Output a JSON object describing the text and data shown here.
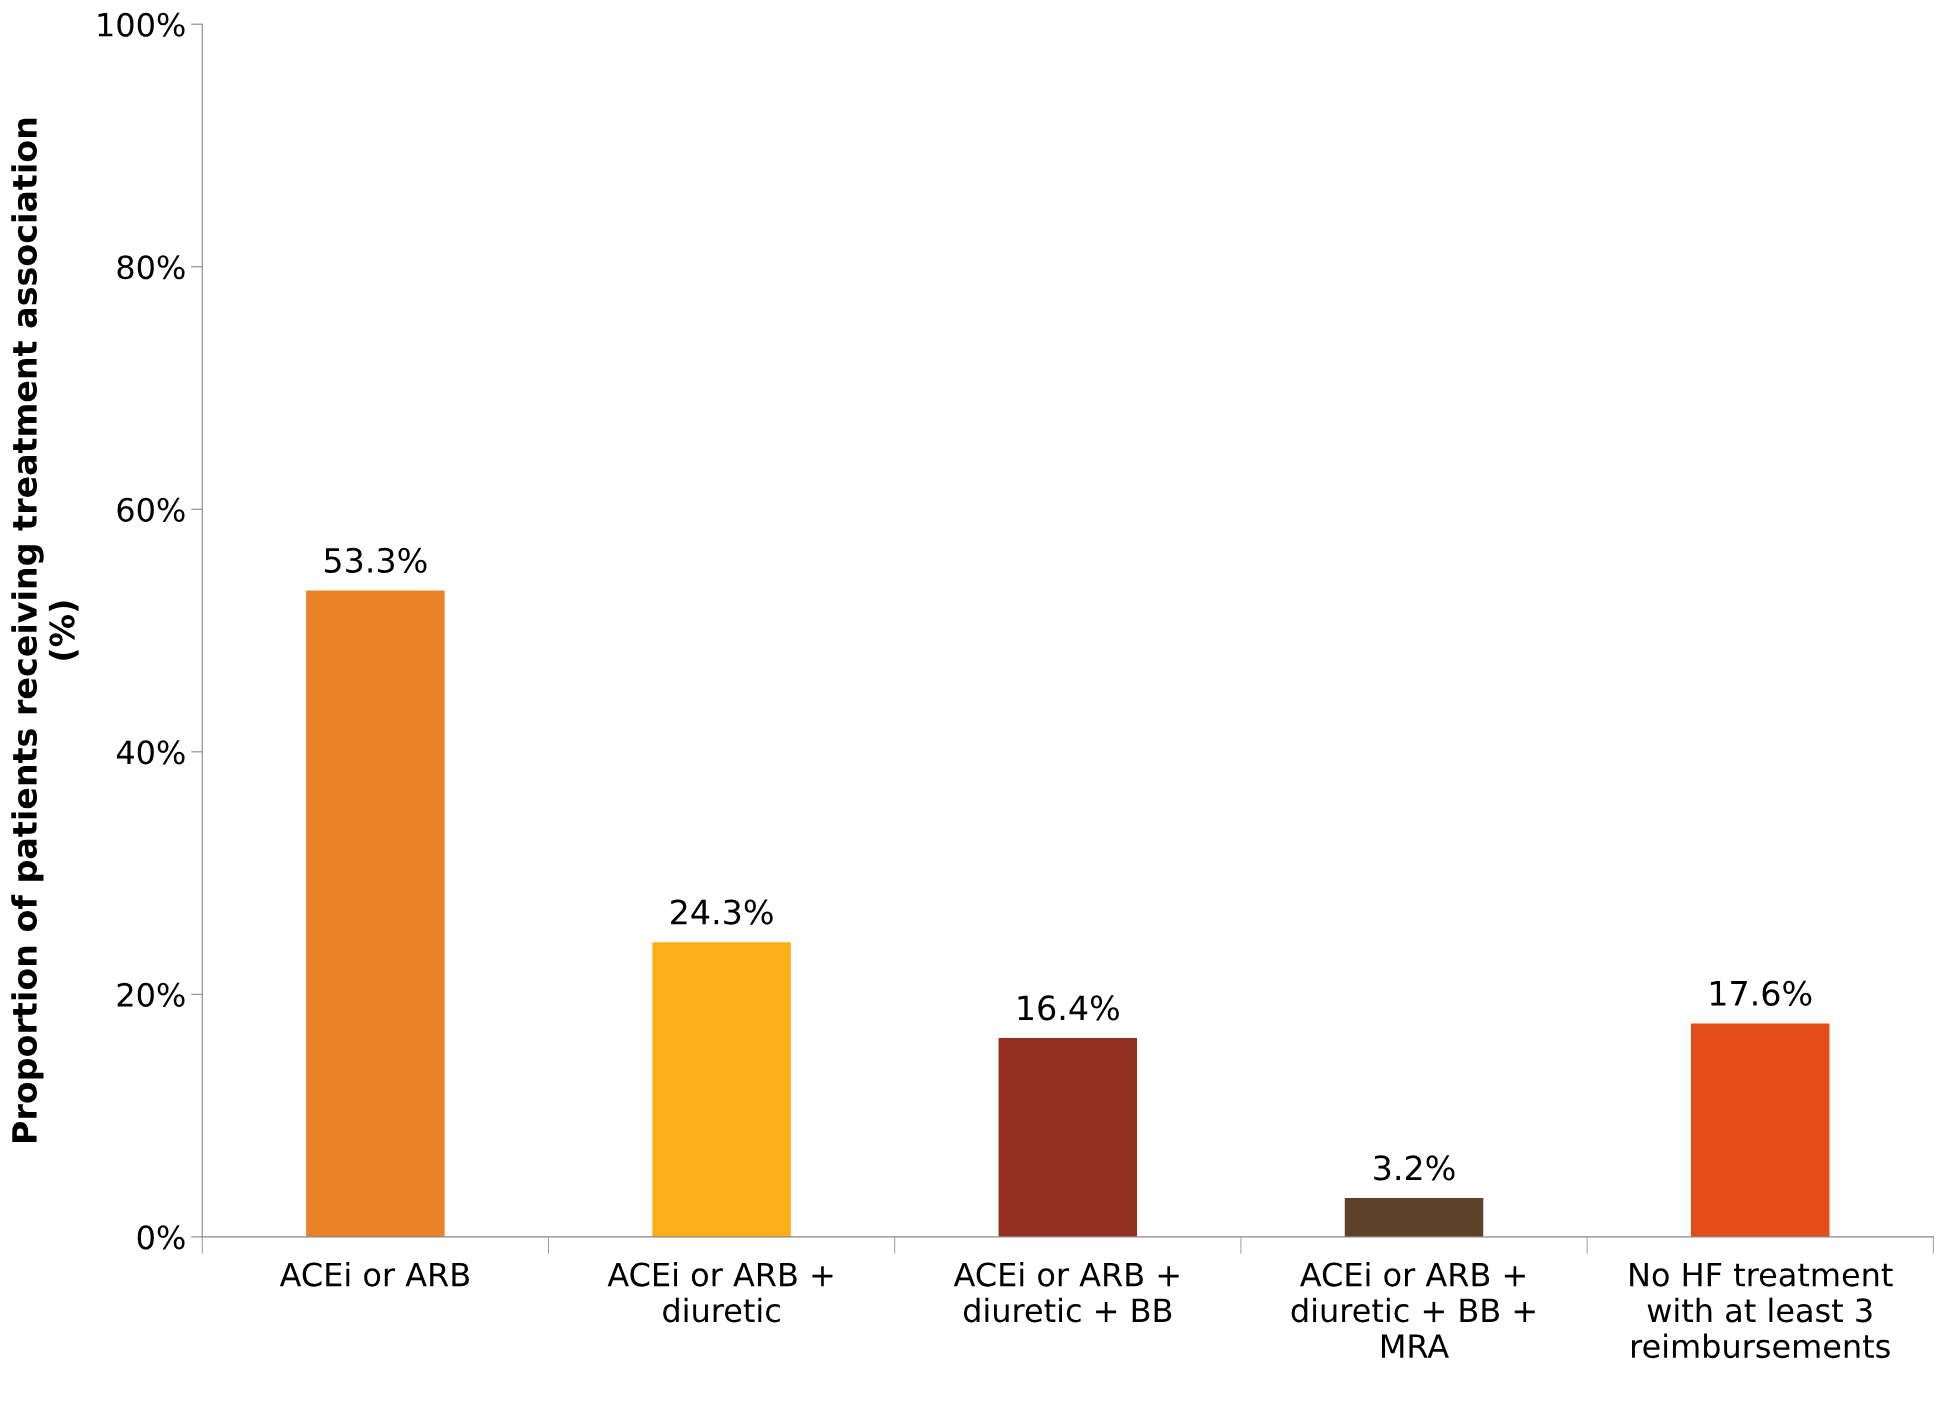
{
  "chart_data": {
    "type": "bar",
    "ylabel": "Proportion of patients receiving treatment association\n(%)",
    "categories": [
      "ACEi or ARB",
      "ACEi or ARB +\ndiuretic",
      "ACEi or ARB +\ndiuretic + BB",
      "ACEi or ARB +\ndiuretic + BB +\nMRA",
      "No HF treatment\nwith at least 3\nreimbursements"
    ],
    "values": [
      53.3,
      24.3,
      16.4,
      3.2,
      17.6
    ],
    "colors": [
      "#ec8228",
      "#fbae17",
      "#933022",
      "#5e4128",
      "#e34e18"
    ],
    "value_labels": [
      "53.3%",
      "24.3%",
      "16.4%",
      "3.2%",
      "17.6%"
    ],
    "ylim": [
      0,
      100
    ],
    "yticks": [
      {
        "value": 0,
        "label": "0%"
      },
      {
        "value": 20,
        "label": "20%"
      },
      {
        "value": 40,
        "label": "40%"
      },
      {
        "value": 60,
        "label": "60%"
      },
      {
        "value": 80,
        "label": "80%"
      },
      {
        "value": 100,
        "label": "100%"
      }
    ],
    "grid": false
  }
}
